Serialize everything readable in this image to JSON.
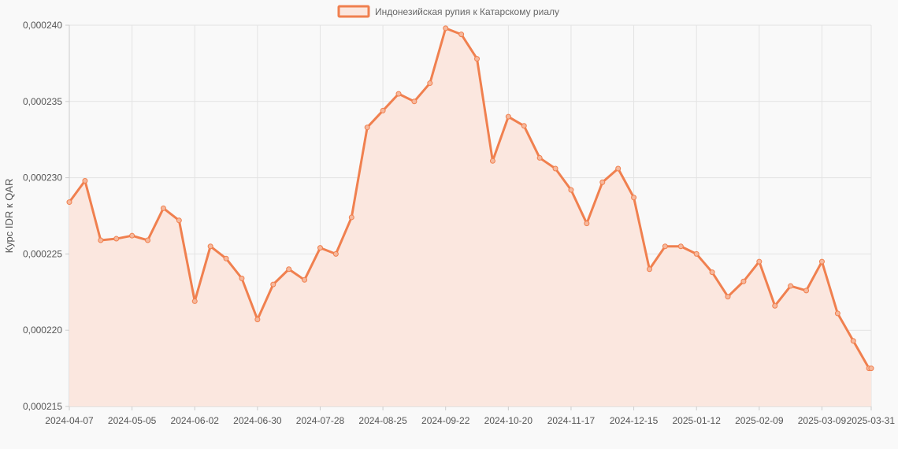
{
  "chart_data": {
    "type": "line",
    "legend": {
      "label": "Индонезийская рупия к Катарскому риалу",
      "position": "top-center"
    },
    "ylabel": "Курс IDR к QAR",
    "xlabel": "",
    "ylim": [
      0.000215,
      0.00024
    ],
    "y_ticks": [
      "0,000215",
      "0,000220",
      "0,000225",
      "0,000230",
      "0,000235",
      "0,000240"
    ],
    "x_ticks": [
      "2024-04-07",
      "2024-05-05",
      "2024-06-02",
      "2024-06-30",
      "2024-07-28",
      "2024-08-25",
      "2024-09-22",
      "2024-10-20",
      "2024-11-17",
      "2024-12-15",
      "2025-01-12",
      "2025-02-09",
      "2025-03-09",
      "2025-03-31"
    ],
    "grid": true,
    "colors": {
      "line": "#f0804f",
      "fill": "#fbe7df",
      "grid": "#e3e3e3"
    },
    "series": [
      {
        "name": "Индонезийская рупия к Катарскому риалу",
        "x": [
          "2024-04-07",
          "2024-04-14",
          "2024-04-21",
          "2024-04-28",
          "2024-05-05",
          "2024-05-12",
          "2024-05-19",
          "2024-05-26",
          "2024-06-02",
          "2024-06-09",
          "2024-06-16",
          "2024-06-23",
          "2024-06-30",
          "2024-07-07",
          "2024-07-14",
          "2024-07-21",
          "2024-07-28",
          "2024-08-04",
          "2024-08-11",
          "2024-08-18",
          "2024-08-25",
          "2024-09-01",
          "2024-09-08",
          "2024-09-15",
          "2024-09-22",
          "2024-09-29",
          "2024-10-06",
          "2024-10-13",
          "2024-10-20",
          "2024-10-27",
          "2024-11-03",
          "2024-11-10",
          "2024-11-17",
          "2024-11-24",
          "2024-12-01",
          "2024-12-08",
          "2024-12-15",
          "2024-12-22",
          "2024-12-29",
          "2025-01-05",
          "2025-01-12",
          "2025-01-19",
          "2025-01-26",
          "2025-02-02",
          "2025-02-09",
          "2025-02-16",
          "2025-02-23",
          "2025-03-02",
          "2025-03-09",
          "2025-03-16",
          "2025-03-23",
          "2025-03-30",
          "2025-03-31"
        ],
        "values": [
          0.0002284,
          0.0002298,
          0.0002259,
          0.000226,
          0.0002262,
          0.0002259,
          0.000228,
          0.0002272,
          0.0002219,
          0.0002255,
          0.0002247,
          0.0002234,
          0.0002207,
          0.000223,
          0.000224,
          0.0002233,
          0.0002254,
          0.000225,
          0.0002274,
          0.0002333,
          0.0002344,
          0.0002355,
          0.000235,
          0.0002362,
          0.0002398,
          0.0002394,
          0.0002378,
          0.0002311,
          0.000234,
          0.0002334,
          0.0002313,
          0.0002306,
          0.0002292,
          0.000227,
          0.0002297,
          0.0002306,
          0.0002287,
          0.000224,
          0.0002255,
          0.0002255,
          0.000225,
          0.0002238,
          0.0002222,
          0.0002232,
          0.0002245,
          0.0002216,
          0.0002229,
          0.0002226,
          0.0002245,
          0.0002211,
          0.0002193,
          0.0002175,
          0.0002175
        ]
      }
    ]
  }
}
